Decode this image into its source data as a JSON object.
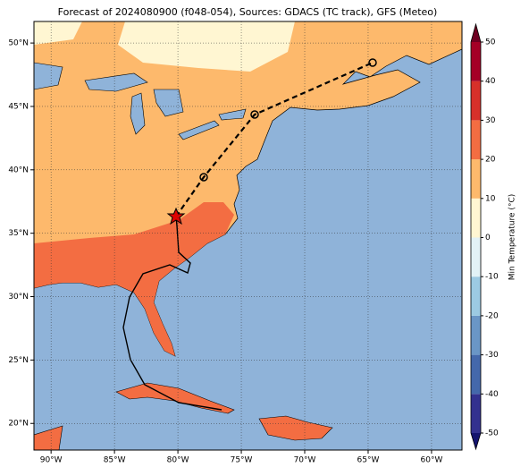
{
  "title": "Forecast of 2024080900 (f048-054), Sources: GDACS (TC track), GFS (Meteo)",
  "map": {
    "xlim": [
      -91.35,
      -57.6
    ],
    "ylim": [
      17.9,
      51.7
    ],
    "xticks": [
      {
        "value": -90,
        "label": "90°W"
      },
      {
        "value": -85,
        "label": "85°W"
      },
      {
        "value": -80,
        "label": "80°W"
      },
      {
        "value": -75,
        "label": "75°W"
      },
      {
        "value": -70,
        "label": "70°W"
      },
      {
        "value": -65,
        "label": "65°W"
      },
      {
        "value": -60,
        "label": "60°W"
      }
    ],
    "yticks": [
      {
        "value": 20,
        "label": "20°N"
      },
      {
        "value": 25,
        "label": "25°N"
      },
      {
        "value": 30,
        "label": "30°N"
      },
      {
        "value": 35,
        "label": "35°N"
      },
      {
        "value": 40,
        "label": "40°N"
      },
      {
        "value": 45,
        "label": "45°N"
      },
      {
        "value": 50,
        "label": "50°N"
      }
    ],
    "grid": true
  },
  "colorbar": {
    "label": "Min Temperature (°C)",
    "levels": [
      -50,
      -40,
      -30,
      -20,
      -10,
      0,
      10,
      20,
      30,
      40,
      50
    ],
    "colors": [
      "#33318f",
      "#4468ab",
      "#6a96c6",
      "#9ccae2",
      "#e2f2f6",
      "#fff6d2",
      "#fdb96c",
      "#f36d42",
      "#d7302a",
      "#a50026"
    ],
    "extend_colors": [
      "#14146e",
      "#6e0021"
    ]
  }
}
